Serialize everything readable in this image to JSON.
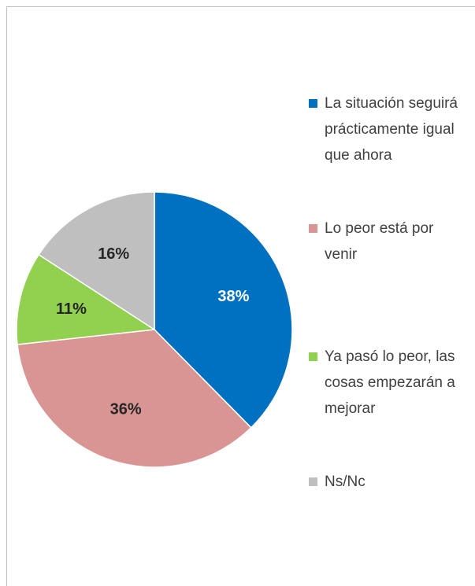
{
  "chart_data": {
    "type": "pie",
    "categories": [
      "La situación seguirá prácticamente igual que ahora",
      "Lo peor está por venir",
      "Ya pasó lo peor, las cosas empezarán a mejorar",
      "Ns/Nc"
    ],
    "values": [
      38,
      36,
      11,
      16
    ],
    "value_labels": [
      "38%",
      "36%",
      "11%",
      "16%"
    ],
    "colors": [
      "#0070c0",
      "#d99594",
      "#92d050",
      "#bfbfbf"
    ],
    "label_colors": [
      "#ffffff",
      "#262626",
      "#262626",
      "#262626"
    ],
    "legend": "right"
  }
}
